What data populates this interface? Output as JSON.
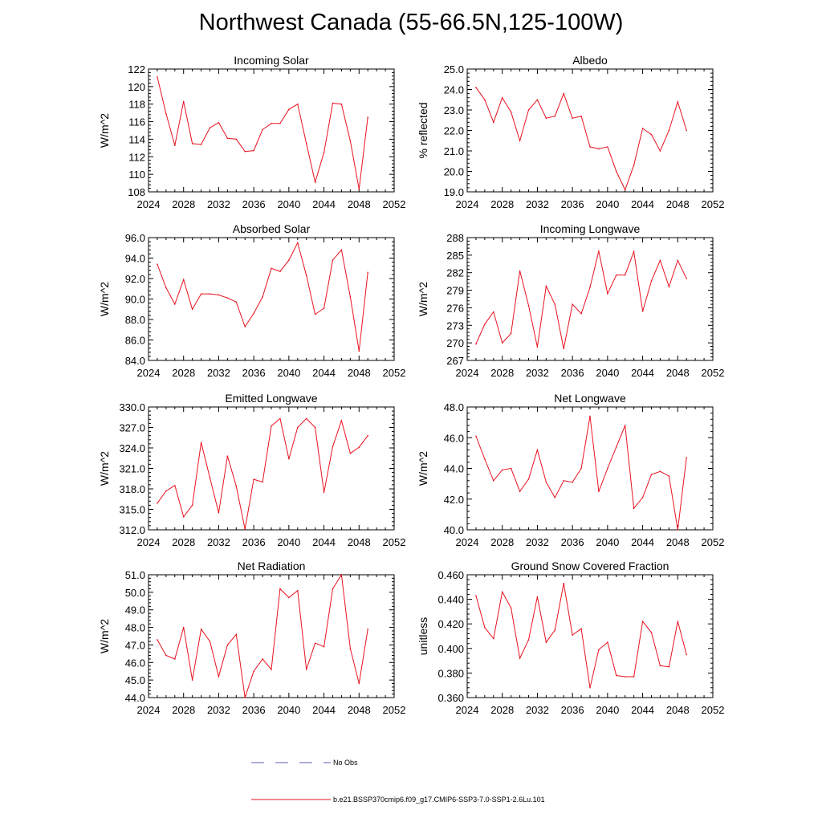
{
  "title": "Northwest Canada (55-66.5N,125-100W)",
  "colors": {
    "series": "#e8121f",
    "obs": "#5a5fb0",
    "axis": "#000000"
  },
  "legend": {
    "items": [
      {
        "label": "No Obs",
        "style": "dashed",
        "color": "#5a5fb0"
      },
      {
        "label": "b.e21.BSSP370cmip6.f09_g17.CMIP6-SSP3-7.0-SSP1-2.6Lu.101",
        "style": "solid",
        "color": "#e8121f"
      }
    ]
  },
  "chart_data": [
    {
      "type": "line",
      "title": "Incoming Solar",
      "xlabel": "",
      "ylabel": "W/m^2",
      "xlim": [
        2024,
        2052
      ],
      "xticks": [
        "2024",
        "2028",
        "2032",
        "2036",
        "2040",
        "2044",
        "2048",
        "2052"
      ],
      "ylim": [
        108,
        122
      ],
      "yticks": [
        "108",
        "110",
        "112",
        "114",
        "116",
        "118",
        "120",
        "122"
      ],
      "x": [
        2025,
        2026,
        2027,
        2028,
        2029,
        2030,
        2031,
        2032,
        2033,
        2034,
        2035,
        2036,
        2037,
        2038,
        2039,
        2040,
        2041,
        2042,
        2043,
        2044,
        2045,
        2046,
        2047,
        2048,
        2049
      ],
      "values": [
        121.1,
        116.9,
        113.3,
        118.3,
        113.5,
        113.4,
        115.3,
        115.9,
        114.1,
        114.0,
        112.6,
        112.7,
        115.1,
        115.8,
        115.8,
        117.4,
        118.0,
        113.5,
        109.1,
        112.5,
        118.1,
        118.0,
        113.8,
        108.3,
        116.5
      ]
    },
    {
      "type": "line",
      "title": "Albedo",
      "xlabel": "",
      "ylabel": "% reflected",
      "xlim": [
        2024,
        2052
      ],
      "xticks": [
        "2024",
        "2028",
        "2032",
        "2036",
        "2040",
        "2044",
        "2048",
        "2052"
      ],
      "ylim": [
        19.0,
        25.0
      ],
      "yticks": [
        "19.0",
        "20.0",
        "21.0",
        "22.0",
        "23.0",
        "24.0",
        "25.0"
      ],
      "x": [
        2025,
        2026,
        2027,
        2028,
        2029,
        2030,
        2031,
        2032,
        2033,
        2034,
        2035,
        2036,
        2037,
        2038,
        2039,
        2040,
        2041,
        2042,
        2043,
        2044,
        2045,
        2046,
        2047,
        2048,
        2049
      ],
      "values": [
        24.1,
        23.5,
        22.4,
        23.6,
        22.9,
        21.5,
        23.0,
        23.5,
        22.6,
        22.7,
        23.8,
        22.6,
        22.7,
        21.2,
        21.1,
        21.2,
        20.0,
        19.1,
        20.3,
        22.1,
        21.8,
        21.0,
        22.0,
        23.4,
        22.0
      ]
    },
    {
      "type": "line",
      "title": "Absorbed Solar",
      "xlabel": "",
      "ylabel": "W/m^2",
      "xlim": [
        2024,
        2052
      ],
      "xticks": [
        "2024",
        "2028",
        "2032",
        "2036",
        "2040",
        "2044",
        "2048",
        "2052"
      ],
      "ylim": [
        84.0,
        96.0
      ],
      "yticks": [
        "84.0",
        "86.0",
        "88.0",
        "90.0",
        "92.0",
        "94.0",
        "96.0"
      ],
      "x": [
        2025,
        2026,
        2027,
        2028,
        2029,
        2030,
        2031,
        2032,
        2033,
        2034,
        2035,
        2036,
        2037,
        2038,
        2039,
        2040,
        2041,
        2042,
        2043,
        2044,
        2045,
        2046,
        2047,
        2048,
        2049
      ],
      "values": [
        93.4,
        91.1,
        89.5,
        91.9,
        89.0,
        90.5,
        90.5,
        90.4,
        90.1,
        89.7,
        87.3,
        88.6,
        90.2,
        93.0,
        92.7,
        93.8,
        95.5,
        92.3,
        88.5,
        89.1,
        93.8,
        94.8,
        90.2,
        84.9,
        92.6
      ]
    },
    {
      "type": "line",
      "title": "Incoming Longwave",
      "xlabel": "",
      "ylabel": "W/m^2",
      "xlim": [
        2024,
        2052
      ],
      "xticks": [
        "2024",
        "2028",
        "2032",
        "2036",
        "2040",
        "2044",
        "2048",
        "2052"
      ],
      "ylim": [
        267,
        288
      ],
      "yticks": [
        "267",
        "270",
        "273",
        "276",
        "279",
        "282",
        "285",
        "288"
      ],
      "x": [
        2025,
        2026,
        2027,
        2028,
        2029,
        2030,
        2031,
        2032,
        2033,
        2034,
        2035,
        2036,
        2037,
        2038,
        2039,
        2040,
        2041,
        2042,
        2043,
        2044,
        2045,
        2046,
        2047,
        2048,
        2049
      ],
      "values": [
        269.8,
        273.2,
        275.3,
        270.0,
        271.6,
        282.3,
        276.4,
        269.3,
        279.7,
        276.6,
        269.0,
        276.6,
        275.0,
        279.5,
        285.7,
        278.4,
        281.6,
        281.6,
        285.6,
        275.4,
        280.6,
        284.1,
        279.6,
        284.1,
        281.0
      ]
    },
    {
      "type": "line",
      "title": "Emitted Longwave",
      "xlabel": "",
      "ylabel": "W/m^2",
      "xlim": [
        2024,
        2052
      ],
      "xticks": [
        "2024",
        "2028",
        "2032",
        "2036",
        "2040",
        "2044",
        "2048",
        "2052"
      ],
      "ylim": [
        312.0,
        330.0
      ],
      "yticks": [
        "312.0",
        "315.0",
        "318.0",
        "321.0",
        "324.0",
        "327.0",
        "330.0"
      ],
      "x": [
        2025,
        2026,
        2027,
        2028,
        2029,
        2030,
        2031,
        2032,
        2033,
        2034,
        2035,
        2036,
        2037,
        2038,
        2039,
        2040,
        2041,
        2042,
        2043,
        2044,
        2045,
        2046,
        2047,
        2048,
        2049
      ],
      "values": [
        315.9,
        317.7,
        318.5,
        313.9,
        315.6,
        324.8,
        319.6,
        314.5,
        322.8,
        318.4,
        312.1,
        319.4,
        319.0,
        327.2,
        328.3,
        322.4,
        327.0,
        328.3,
        327.0,
        317.5,
        324.2,
        328.0,
        323.2,
        324.1,
        325.8
      ]
    },
    {
      "type": "line",
      "title": "Net Longwave",
      "xlabel": "",
      "ylabel": "W/m^2",
      "xlim": [
        2024,
        2052
      ],
      "xticks": [
        "2024",
        "2028",
        "2032",
        "2036",
        "2040",
        "2044",
        "2048",
        "2052"
      ],
      "ylim": [
        40.0,
        48.0
      ],
      "yticks": [
        "40.0",
        "42.0",
        "44.0",
        "46.0",
        "48.0"
      ],
      "x": [
        2025,
        2026,
        2027,
        2028,
        2029,
        2030,
        2031,
        2032,
        2033,
        2034,
        2035,
        2036,
        2037,
        2038,
        2039,
        2040,
        2041,
        2042,
        2043,
        2044,
        2045,
        2046,
        2047,
        2048,
        2049
      ],
      "values": [
        46.1,
        44.6,
        43.2,
        43.9,
        44.0,
        42.5,
        43.3,
        45.2,
        43.1,
        42.1,
        43.2,
        43.1,
        44.0,
        47.4,
        42.5,
        44.0,
        45.4,
        46.8,
        41.4,
        42.1,
        43.6,
        43.8,
        43.5,
        40.0,
        44.7
      ]
    },
    {
      "type": "line",
      "title": "Net Radiation",
      "xlabel": "",
      "ylabel": "W/m^2",
      "xlim": [
        2024,
        2052
      ],
      "xticks": [
        "2024",
        "2028",
        "2032",
        "2036",
        "2040",
        "2044",
        "2048",
        "2052"
      ],
      "ylim": [
        44.0,
        51.0
      ],
      "yticks": [
        "44.0",
        "45.0",
        "46.0",
        "47.0",
        "48.0",
        "49.0",
        "50.0",
        "51.0"
      ],
      "x": [
        2025,
        2026,
        2027,
        2028,
        2029,
        2030,
        2031,
        2032,
        2033,
        2034,
        2035,
        2036,
        2037,
        2038,
        2039,
        2040,
        2041,
        2042,
        2043,
        2044,
        2045,
        2046,
        2047,
        2048,
        2049
      ],
      "values": [
        47.3,
        46.4,
        46.2,
        48.0,
        45.0,
        47.9,
        47.2,
        45.2,
        47.0,
        47.6,
        44.0,
        45.5,
        46.2,
        45.6,
        50.2,
        49.7,
        50.1,
        45.6,
        47.1,
        46.9,
        50.2,
        51.0,
        46.8,
        44.8,
        47.9
      ]
    },
    {
      "type": "line",
      "title": "Ground Snow Covered Fraction",
      "xlabel": "",
      "ylabel": "unitless",
      "xlim": [
        2024,
        2052
      ],
      "xticks": [
        "2024",
        "2028",
        "2032",
        "2036",
        "2040",
        "2044",
        "2048",
        "2052"
      ],
      "ylim": [
        0.36,
        0.46
      ],
      "yticks": [
        "0.360",
        "0.380",
        "0.400",
        "0.420",
        "0.440",
        "0.460"
      ],
      "x": [
        2025,
        2026,
        2027,
        2028,
        2029,
        2030,
        2031,
        2032,
        2033,
        2034,
        2035,
        2036,
        2037,
        2038,
        2039,
        2040,
        2041,
        2042,
        2043,
        2044,
        2045,
        2046,
        2047,
        2048,
        2049
      ],
      "values": [
        0.443,
        0.417,
        0.408,
        0.446,
        0.433,
        0.392,
        0.407,
        0.442,
        0.405,
        0.415,
        0.453,
        0.411,
        0.416,
        0.368,
        0.399,
        0.405,
        0.378,
        0.377,
        0.377,
        0.422,
        0.413,
        0.386,
        0.385,
        0.422,
        0.395
      ]
    }
  ]
}
